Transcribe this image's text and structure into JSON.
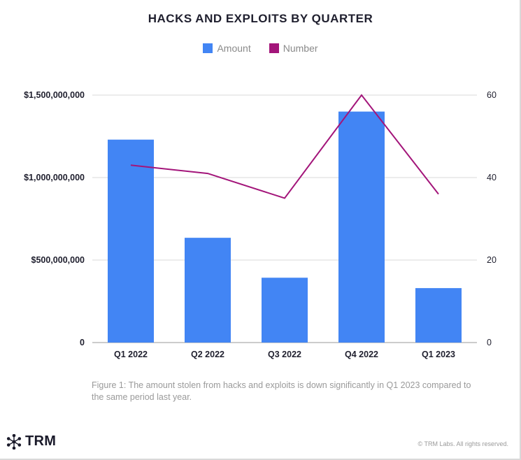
{
  "chart_data": {
    "type": "bar",
    "title": "HACKS AND EXPLOITS BY QUARTER",
    "categories": [
      "Q1 2022",
      "Q2 2022",
      "Q3 2022",
      "Q4 2022",
      "Q1 2023"
    ],
    "series": [
      {
        "name": "Amount",
        "type": "bar",
        "axis": "left",
        "color": "#4285f4",
        "values": [
          1230000000,
          635000000,
          393000000,
          1400000000,
          330000000
        ]
      },
      {
        "name": "Number",
        "type": "line",
        "axis": "right",
        "color": "#a3157a",
        "values": [
          43,
          41,
          35,
          60,
          36
        ]
      }
    ],
    "y_left": {
      "range": [
        0,
        1500000000
      ],
      "ticks": [
        0,
        500000000,
        1000000000,
        1500000000
      ],
      "tick_labels": [
        "0",
        "$500,000,000",
        "$1,000,000,000",
        "$1,500,000,000"
      ]
    },
    "y_right": {
      "range": [
        0,
        60
      ],
      "ticks": [
        0,
        20,
        40,
        60
      ],
      "tick_labels": [
        "0",
        "20",
        "40",
        "60"
      ]
    },
    "grid": "horizontal",
    "legend_position": "top-center"
  },
  "caption": "Figure 1: The amount stolen from hacks and exploits is down significantly in Q1 2023 compared to the same period last year.",
  "brand": {
    "name": "TRM",
    "logo_icon": "trm-star-logo-icon"
  },
  "copyright": "© TRM Labs. All rights reserved."
}
